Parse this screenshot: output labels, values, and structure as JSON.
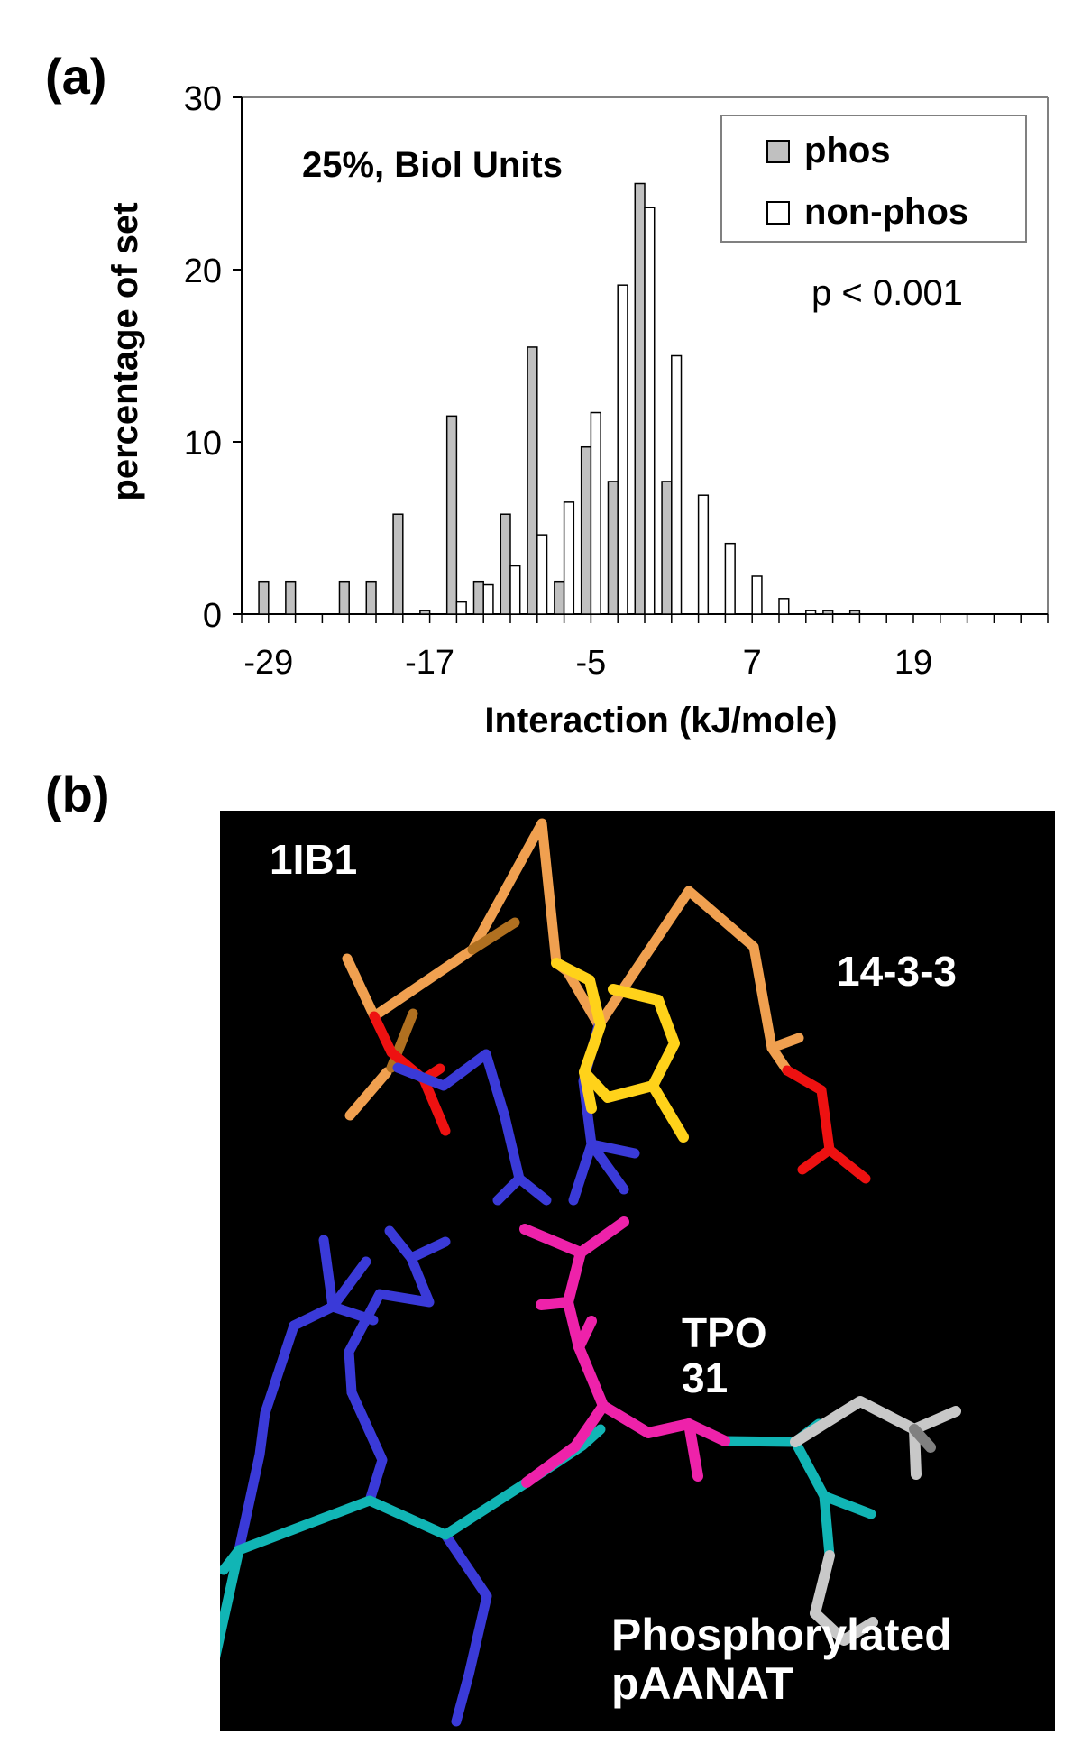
{
  "figure": {
    "panel_a_label": "(a)",
    "panel_b_label": "(b)"
  },
  "chart_data": {
    "type": "bar",
    "title": "",
    "annotation": "25%, Biol Units",
    "p_value_text": "p < 0.001",
    "xlabel": "Interaction (kJ/mole)",
    "ylabel": "percentage of set",
    "xlim": [
      -31,
      29
    ],
    "ylim": [
      0,
      30
    ],
    "x_ticks": [
      -29,
      -17,
      -5,
      7,
      19
    ],
    "y_ticks": [
      0,
      10,
      20,
      30
    ],
    "grid": false,
    "legend_position": "top-right",
    "legend": [
      {
        "name": "phos",
        "color": "#c0c0c0"
      },
      {
        "name": "non-phos",
        "color": "#ffffff"
      }
    ],
    "x": [
      -29,
      -27,
      -25,
      -23,
      -21,
      -19,
      -17,
      -15,
      -13,
      -11,
      -9,
      -7,
      -5,
      -3,
      -1,
      1,
      3,
      5,
      7,
      9,
      11,
      13,
      15
    ],
    "series": [
      {
        "name": "phos",
        "values": [
          1.9,
          1.9,
          0,
          1.9,
          1.9,
          5.8,
          0.2,
          11.5,
          1.9,
          5.8,
          15.5,
          1.9,
          9.7,
          7.7,
          25,
          7.7,
          0,
          0,
          0,
          0,
          0,
          0.2,
          0.2
        ]
      },
      {
        "name": "non-phos",
        "values": [
          0,
          0,
          0,
          0,
          0,
          0,
          0,
          0.7,
          1.7,
          2.8,
          4.6,
          6.5,
          11.7,
          19.1,
          23.6,
          15,
          6.9,
          4.1,
          2.2,
          0.9,
          0.2,
          0,
          0
        ]
      }
    ]
  },
  "structure": {
    "labels": {
      "pdb_id": "1IB1",
      "protein": "14-3-3",
      "residue_name": "TPO",
      "residue_number": "31",
      "ligand_line1": "Phosphorylated",
      "ligand_line2": "pAANAT"
    },
    "colors": {
      "background": "#000000",
      "orange": "#f0a050",
      "dark_orange": "#b07020",
      "red": "#ee1111",
      "blue": "#3a3ad8",
      "yellow": "#ffd21a",
      "magenta": "#ee22aa",
      "cyan": "#11b5b5",
      "gray": "#c8c8c8",
      "dark_gray": "#808080"
    }
  }
}
